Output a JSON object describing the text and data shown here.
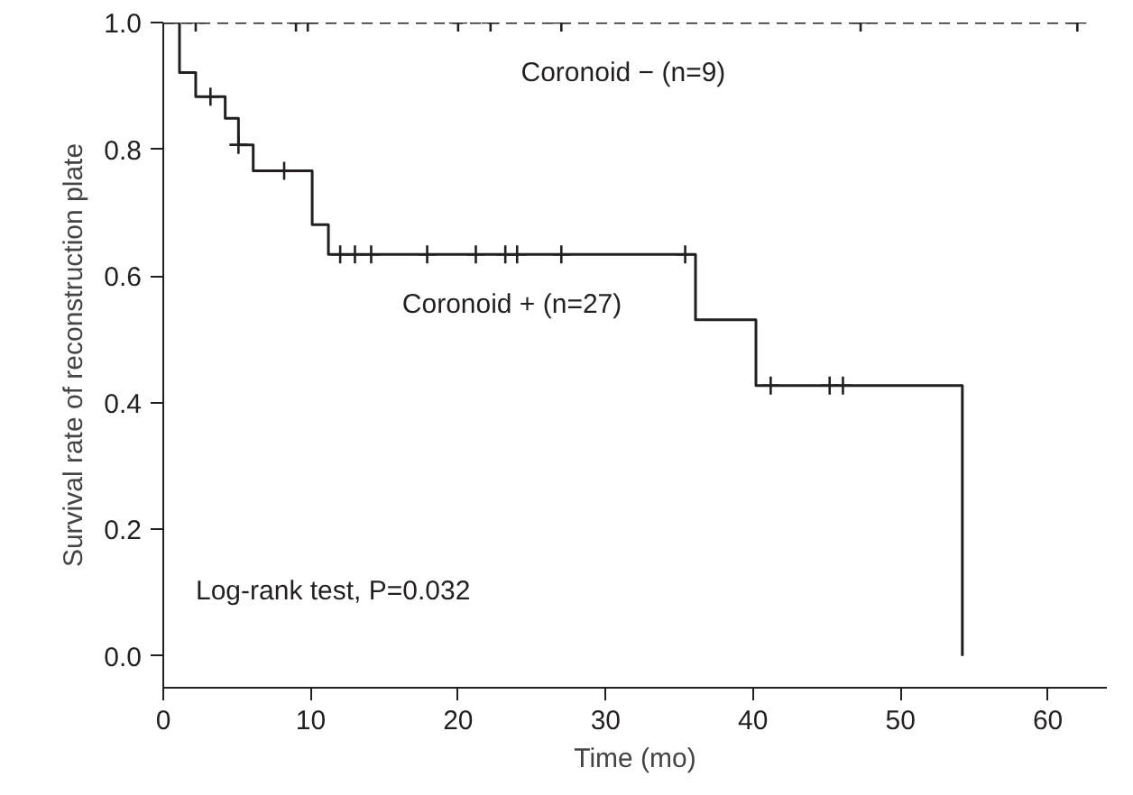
{
  "chart_data": {
    "type": "step",
    "xlabel": "Time (mo)",
    "ylabel": "Survival rate of reconstruction plate",
    "xlim": [
      0,
      64
    ],
    "ylim": [
      -0.05,
      1.0
    ],
    "xticks": [
      0,
      10,
      20,
      30,
      40,
      50,
      60
    ],
    "yticks": [
      {
        "value": 0,
        "label": "0.0"
      },
      {
        "value": 0.2,
        "label": "0.2"
      },
      {
        "value": 0.4,
        "label": "0.4"
      },
      {
        "value": 0.6,
        "label": "0.6"
      },
      {
        "value": 0.8,
        "label": "0.8"
      },
      {
        "value": 1,
        "label": "1.0"
      }
    ],
    "series": [
      {
        "name": "Coronoid − (n=9)",
        "color": "#231f20",
        "line_style": "dashed",
        "x": [
          0,
          62.4
        ],
        "values": [
          1,
          1
        ]
      },
      {
        "name": "Coronoid + (n=27)",
        "color": "#231f20",
        "line_style": "solid",
        "x": [
          0,
          1.1,
          2.2,
          4.2,
          5.1,
          6.1,
          10.1,
          11.2,
          36.1,
          40.2,
          54.2
        ],
        "values": [
          1,
          0.921,
          0.883,
          0.849,
          0.807,
          0.766,
          0.681,
          0.634,
          0.531,
          0.427,
          0
        ]
      },
      {
        "type": "scatter",
        "marker": "cross",
        "color": "#231f20",
        "x": [
          2.2,
          9.0,
          9.8,
          20,
          22.2,
          27,
          47.3,
          62
        ],
        "values": [
          1,
          1,
          1,
          1,
          1,
          1,
          1,
          1
        ]
      },
      {
        "type": "scatter",
        "marker": "cross",
        "color": "#231f20",
        "x": [
          3.2,
          5.1,
          8.2,
          12.0,
          13.0,
          14.1,
          17.9,
          21.2,
          23.2,
          24.0,
          27,
          35.4,
          41.2,
          45.2,
          46.1
        ],
        "values": [
          0.883,
          0.807,
          0.766,
          0.634,
          0.634,
          0.634,
          0.634,
          0.634,
          0.634,
          0.634,
          0.634,
          0.634,
          0.427,
          0.427,
          0.427
        ]
      }
    ],
    "annotations": [
      "Log-rank test, P=0.032"
    ],
    "grid": false
  }
}
